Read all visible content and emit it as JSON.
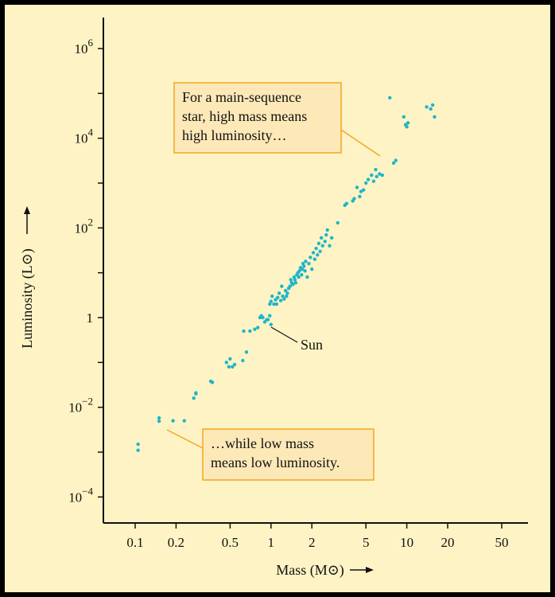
{
  "colors": {
    "background": "#FDF3C4",
    "frame": "#000000",
    "point": "#1FB5C8",
    "annotation_fill": "#FDE8B8",
    "annotation_border": "#F5A623",
    "axis": "#111111"
  },
  "chart_data": {
    "type": "scatter",
    "scale": {
      "x": "log",
      "y": "log"
    },
    "xlabel": "Mass (M⊙)",
    "ylabel": "Luminosity (L⊙)",
    "xlim": [
      0.065,
      75
    ],
    "ylim": [
      3e-05,
      3000000
    ],
    "grid": false,
    "x_ticks": [
      {
        "value": 0.1,
        "label": "0.1"
      },
      {
        "value": 0.2,
        "label": "0.2"
      },
      {
        "value": 0.5,
        "label": "0.5"
      },
      {
        "value": 1,
        "label": "1"
      },
      {
        "value": 2,
        "label": "2"
      },
      {
        "value": 5,
        "label": "5"
      },
      {
        "value": 10,
        "label": "10"
      },
      {
        "value": 20,
        "label": "20"
      },
      {
        "value": 50,
        "label": "50"
      }
    ],
    "y_ticks": [
      {
        "value": 0.0001,
        "base": "10",
        "exp": "−4",
        "label": ""
      },
      {
        "value": 0.01,
        "base": "10",
        "exp": "−2",
        "label": ""
      },
      {
        "value": 1,
        "base": "",
        "exp": "",
        "label": "1"
      },
      {
        "value": 100,
        "base": "10",
        "exp": "2",
        "label": ""
      },
      {
        "value": 10000,
        "base": "10",
        "exp": "4",
        "label": ""
      },
      {
        "value": 1000000,
        "base": "10",
        "exp": "6",
        "label": ""
      }
    ],
    "y_minor_ticks": [
      0.001,
      0.1,
      10,
      1000,
      100000
    ],
    "points": [
      [
        0.105,
        0.0015
      ],
      [
        0.105,
        0.0011
      ],
      [
        0.15,
        0.0058
      ],
      [
        0.15,
        0.0049
      ],
      [
        0.19,
        0.005
      ],
      [
        0.23,
        0.005
      ],
      [
        0.27,
        0.016
      ],
      [
        0.28,
        0.021
      ],
      [
        0.28,
        0.02
      ],
      [
        0.36,
        0.038
      ],
      [
        0.37,
        0.036
      ],
      [
        0.47,
        0.1
      ],
      [
        0.5,
        0.12
      ],
      [
        0.49,
        0.08
      ],
      [
        0.52,
        0.08
      ],
      [
        0.54,
        0.09
      ],
      [
        0.62,
        0.11
      ],
      [
        0.66,
        0.17
      ],
      [
        0.63,
        0.5
      ],
      [
        0.7,
        0.5
      ],
      [
        0.76,
        0.55
      ],
      [
        0.8,
        0.6
      ],
      [
        0.83,
        1.0
      ],
      [
        0.85,
        1.1
      ],
      [
        0.87,
        1.0
      ],
      [
        0.9,
        0.8
      ],
      [
        0.93,
        0.9
      ],
      [
        0.95,
        0.9
      ],
      [
        0.98,
        1.1
      ],
      [
        1.0,
        0.7
      ],
      [
        0.98,
        2.0
      ],
      [
        1.0,
        2.3
      ],
      [
        1.02,
        3.0
      ],
      [
        1.05,
        2.0
      ],
      [
        1.08,
        2.5
      ],
      [
        1.1,
        2.0
      ],
      [
        1.12,
        2.8
      ],
      [
        1.15,
        3.5
      ],
      [
        1.18,
        2.4
      ],
      [
        1.2,
        5.0
      ],
      [
        1.22,
        3.0
      ],
      [
        1.25,
        2.6
      ],
      [
        1.28,
        4.0
      ],
      [
        1.3,
        3.0
      ],
      [
        1.32,
        3.5
      ],
      [
        1.35,
        4.5
      ],
      [
        1.38,
        5.0
      ],
      [
        1.4,
        7.0
      ],
      [
        1.42,
        6.0
      ],
      [
        1.45,
        5.5
      ],
      [
        1.48,
        8.0
      ],
      [
        1.5,
        7.0
      ],
      [
        1.52,
        6.0
      ],
      [
        1.55,
        9.0
      ],
      [
        1.58,
        10.0
      ],
      [
        1.6,
        8.0
      ],
      [
        1.62,
        11.0
      ],
      [
        1.65,
        13.0
      ],
      [
        1.68,
        9.0
      ],
      [
        1.7,
        12.0
      ],
      [
        1.72,
        16.0
      ],
      [
        1.75,
        14.0
      ],
      [
        1.78,
        11.0
      ],
      [
        1.8,
        18.0
      ],
      [
        1.85,
        8.0
      ],
      [
        1.9,
        16.0
      ],
      [
        1.95,
        22.0
      ],
      [
        2.0,
        12.0
      ],
      [
        2.05,
        28.0
      ],
      [
        2.1,
        20.0
      ],
      [
        2.15,
        35.0
      ],
      [
        2.2,
        25.0
      ],
      [
        2.25,
        45.0
      ],
      [
        2.3,
        30.0
      ],
      [
        2.35,
        60.0
      ],
      [
        2.4,
        40.0
      ],
      [
        2.5,
        50.0
      ],
      [
        2.55,
        70.0
      ],
      [
        2.6,
        90.0
      ],
      [
        2.7,
        40.0
      ],
      [
        2.8,
        60.0
      ],
      [
        3.1,
        130.0
      ],
      [
        3.5,
        320.0
      ],
      [
        3.6,
        350.0
      ],
      [
        4.0,
        400.0
      ],
      [
        4.1,
        450.0
      ],
      [
        4.3,
        800.0
      ],
      [
        4.5,
        500.0
      ],
      [
        4.6,
        650.0
      ],
      [
        4.8,
        700.0
      ],
      [
        5.0,
        1000.0
      ],
      [
        5.2,
        1200.0
      ],
      [
        5.5,
        1500.0
      ],
      [
        5.7,
        1100.0
      ],
      [
        5.9,
        2000.0
      ],
      [
        6.0,
        1400.0
      ],
      [
        6.3,
        1600.0
      ],
      [
        6.6,
        1500.0
      ],
      [
        7.5,
        80000.0
      ],
      [
        8.0,
        2800.0
      ],
      [
        8.3,
        3200.0
      ],
      [
        9.5,
        30000.0
      ],
      [
        9.8,
        20000.0
      ],
      [
        10.0,
        18000.0
      ],
      [
        10.2,
        22000.0
      ],
      [
        14.0,
        50000.0
      ],
      [
        15.0,
        45000.0
      ],
      [
        15.5,
        55000.0
      ],
      [
        16.0,
        30000.0
      ]
    ],
    "annotations": [
      {
        "text": "For a main-sequence star, high mass means high luminosity…",
        "lines": [
          "For a main-sequence",
          "star, high mass means",
          "high luminosity…"
        ]
      },
      {
        "text": "…while low mass means low luminosity.",
        "lines": [
          "…while low mass",
          "means low luminosity."
        ]
      },
      {
        "text": "Sun",
        "lines": [
          "Sun"
        ]
      }
    ]
  }
}
